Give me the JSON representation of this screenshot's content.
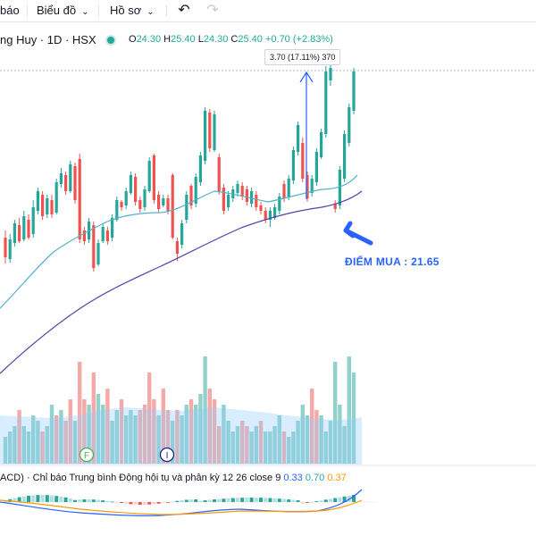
{
  "toolbar": {
    "item1": "báo",
    "item2": "Biểu đồ",
    "item3": "Hồ sơ"
  },
  "symbol": {
    "name": "ng Huy · 1D · HSX",
    "open_label": "O",
    "open": "24.30",
    "high_label": "H",
    "high": "25.40",
    "low_label": "L",
    "low": "24.30",
    "close_label": "C",
    "close": "25.40",
    "change": "+0.70 (+2.83%)"
  },
  "measure_label": "3.70 (17.11%) 370",
  "annotation": "ĐIỂM MUA : 21.65",
  "markers": {
    "f": "F",
    "i": "I"
  },
  "macd": {
    "title": "ACD) · Chỉ báo Trung bình Động hội tụ và phân kỳ",
    "params": "12 26 close 9",
    "v1": "0.33",
    "v2": "0.70",
    "v3": "0.37"
  },
  "colors": {
    "up": "#26a69a",
    "down": "#ef5350",
    "ma_fast": "#4fb3c8",
    "ma_slow": "#5b3fa8",
    "annotation": "#2962ff"
  },
  "chart_data": {
    "type": "candlestick",
    "candles": [
      [
        "d",
        266,
        288,
        258,
        295
      ],
      [
        "u",
        290,
        268,
        262,
        294
      ],
      [
        "u",
        272,
        250,
        246,
        276
      ],
      [
        "d",
        252,
        270,
        244,
        272
      ],
      [
        "u",
        268,
        242,
        236,
        270
      ],
      [
        "d",
        246,
        266,
        240,
        268
      ],
      [
        "u",
        262,
        232,
        224,
        266
      ],
      [
        "u",
        236,
        214,
        210,
        240
      ],
      [
        "d",
        218,
        242,
        214,
        246
      ],
      [
        "u",
        240,
        222,
        218,
        244
      ],
      [
        "d",
        224,
        240,
        218,
        244
      ],
      [
        "u",
        238,
        204,
        200,
        240
      ],
      [
        "u",
        206,
        194,
        188,
        210
      ],
      [
        "d",
        196,
        214,
        192,
        218
      ],
      [
        "u",
        214,
        184,
        180,
        216
      ],
      [
        "d",
        186,
        224,
        182,
        228
      ],
      [
        "d",
        178,
        268,
        172,
        272
      ],
      [
        "d",
        258,
        270,
        254,
        274
      ],
      [
        "u",
        268,
        248,
        244,
        272
      ],
      [
        "d",
        252,
        300,
        248,
        304
      ],
      [
        "u",
        296,
        272,
        268,
        298
      ],
      [
        "u",
        270,
        254,
        250,
        272
      ],
      [
        "d",
        258,
        270,
        254,
        274
      ],
      [
        "u",
        266,
        244,
        240,
        270
      ],
      [
        "u",
        246,
        224,
        220,
        248
      ],
      [
        "d",
        226,
        232,
        224,
        236
      ],
      [
        "u",
        230,
        214,
        210,
        234
      ],
      [
        "u",
        216,
        196,
        192,
        218
      ],
      [
        "d",
        198,
        226,
        194,
        230
      ],
      [
        "d",
        224,
        234,
        220,
        238
      ],
      [
        "u",
        232,
        212,
        208,
        236
      ],
      [
        "u",
        214,
        180,
        176,
        216
      ],
      [
        "d",
        174,
        224,
        172,
        228
      ],
      [
        "d",
        218,
        234,
        214,
        238
      ],
      [
        "u",
        230,
        222,
        218,
        232
      ],
      [
        "d",
        222,
        236,
        218,
        240
      ],
      [
        "d",
        196,
        266,
        194,
        268
      ],
      [
        "d",
        270,
        284,
        266,
        292
      ],
      [
        "u",
        274,
        250,
        246,
        278
      ],
      [
        "u",
        246,
        218,
        214,
        250
      ],
      [
        "d",
        208,
        230,
        206,
        234
      ],
      [
        "u",
        228,
        198,
        194,
        232
      ],
      [
        "u",
        204,
        174,
        170,
        208
      ],
      [
        "u",
        180,
        124,
        120,
        184
      ],
      [
        "d",
        126,
        166,
        122,
        170
      ],
      [
        "u",
        168,
        128,
        124,
        170
      ],
      [
        "d",
        176,
        214,
        172,
        218
      ],
      [
        "d",
        210,
        236,
        206,
        240
      ],
      [
        "u",
        232,
        218,
        214,
        236
      ],
      [
        "u",
        222,
        212,
        208,
        226
      ],
      [
        "u",
        216,
        206,
        202,
        220
      ],
      [
        "d",
        208,
        220,
        204,
        224
      ],
      [
        "d",
        212,
        226,
        208,
        230
      ],
      [
        "u",
        228,
        214,
        210,
        232
      ],
      [
        "d",
        218,
        232,
        214,
        236
      ],
      [
        "d",
        230,
        236,
        226,
        240
      ],
      [
        "d",
        236,
        246,
        232,
        250
      ],
      [
        "u",
        246,
        236,
        232,
        254
      ],
      [
        "u",
        244,
        232,
        228,
        246
      ],
      [
        "u",
        236,
        220,
        216,
        240
      ],
      [
        "d",
        206,
        222,
        202,
        226
      ],
      [
        "u",
        220,
        200,
        196,
        224
      ],
      [
        "u",
        202,
        168,
        164,
        206
      ],
      [
        "u",
        170,
        140,
        136,
        174
      ],
      [
        "d",
        160,
        200,
        154,
        204
      ],
      [
        "d",
        196,
        222,
        192,
        226
      ],
      [
        "u",
        216,
        200,
        196,
        220
      ],
      [
        "u",
        204,
        170,
        166,
        208
      ],
      [
        "u",
        176,
        148,
        144,
        178
      ],
      [
        "u",
        150,
        80,
        74,
        154
      ],
      [
        "u",
        90,
        76,
        72,
        96
      ],
      [
        "d",
        228,
        234,
        224,
        238
      ],
      [
        "u",
        230,
        190,
        186,
        234
      ],
      [
        "u",
        200,
        150,
        146,
        204
      ],
      [
        "u",
        160,
        120,
        116,
        164
      ],
      [
        "u",
        124,
        80,
        76,
        128
      ]
    ],
    "volume": [
      [
        0.25,
        "u"
      ],
      [
        0.3,
        "u"
      ],
      [
        0.35,
        "u"
      ],
      [
        0.5,
        "d"
      ],
      [
        0.35,
        "u"
      ],
      [
        0.3,
        "u"
      ],
      [
        0.45,
        "u"
      ],
      [
        0.4,
        "u"
      ],
      [
        0.3,
        "d"
      ],
      [
        0.35,
        "u"
      ],
      [
        0.55,
        "u"
      ],
      [
        0.45,
        "d"
      ],
      [
        0.5,
        "u"
      ],
      [
        0.4,
        "d"
      ],
      [
        0.6,
        "d"
      ],
      [
        0.4,
        "u"
      ],
      [
        0.95,
        "d"
      ],
      [
        0.6,
        "d"
      ],
      [
        0.55,
        "u"
      ],
      [
        0.85,
        "d"
      ],
      [
        0.65,
        "u"
      ],
      [
        0.55,
        "u"
      ],
      [
        0.7,
        "d"
      ],
      [
        0.4,
        "u"
      ],
      [
        0.5,
        "u"
      ],
      [
        0.6,
        "d"
      ],
      [
        0.45,
        "u"
      ],
      [
        0.5,
        "u"
      ],
      [
        0.45,
        "u"
      ],
      [
        0.5,
        "d"
      ],
      [
        0.55,
        "d"
      ],
      [
        0.85,
        "d"
      ],
      [
        0.6,
        "d"
      ],
      [
        0.45,
        "u"
      ],
      [
        0.7,
        "d"
      ],
      [
        0.5,
        "d"
      ],
      [
        0.4,
        "u"
      ],
      [
        0.5,
        "d"
      ],
      [
        0.45,
        "u"
      ],
      [
        0.55,
        "u"
      ],
      [
        0.6,
        "d"
      ],
      [
        0.55,
        "u"
      ],
      [
        0.65,
        "u"
      ],
      [
        1.0,
        "u"
      ],
      [
        0.7,
        "d"
      ],
      [
        0.6,
        "d"
      ],
      [
        0.35,
        "d"
      ],
      [
        0.55,
        "u"
      ],
      [
        0.4,
        "u"
      ],
      [
        0.3,
        "u"
      ],
      [
        0.35,
        "u"
      ],
      [
        0.4,
        "d"
      ],
      [
        0.35,
        "d"
      ],
      [
        0.3,
        "u"
      ],
      [
        0.35,
        "u"
      ],
      [
        0.4,
        "d"
      ],
      [
        0.3,
        "u"
      ],
      [
        0.3,
        "u"
      ],
      [
        0.35,
        "u"
      ],
      [
        0.45,
        "u"
      ],
      [
        0.3,
        "d"
      ],
      [
        0.25,
        "u"
      ],
      [
        0.3,
        "u"
      ],
      [
        0.4,
        "u"
      ],
      [
        0.55,
        "u"
      ],
      [
        0.45,
        "u"
      ],
      [
        0.7,
        "d"
      ],
      [
        0.5,
        "d"
      ],
      [
        0.45,
        "u"
      ],
      [
        0.3,
        "u"
      ],
      [
        0.4,
        "u"
      ],
      [
        0.95,
        "u"
      ],
      [
        0.55,
        "u"
      ],
      [
        0.35,
        "u"
      ],
      [
        1.0,
        "u"
      ],
      [
        0.85,
        "u"
      ]
    ]
  }
}
